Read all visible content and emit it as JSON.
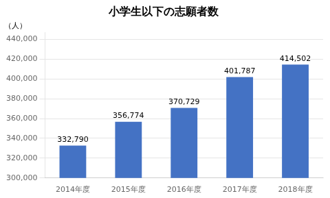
{
  "chart_data": {
    "type": "bar",
    "title": "小学生以下の志願者数",
    "annotations": [
      "（人）"
    ],
    "categories": [
      "2014年度",
      "2015年度",
      "2016年度",
      "2017年度",
      "2018年度"
    ],
    "values": [
      332790,
      356774,
      370729,
      401787,
      414502
    ],
    "value_labels": [
      "332,790",
      "356,774",
      "370,729",
      "401,787",
      "414,502"
    ],
    "data_labels": true,
    "color": "#4472C4",
    "ylim": [
      300000,
      447000
    ],
    "yticks": [
      {
        "value": 300000,
        "label": "300,000"
      },
      {
        "value": 320000,
        "label": "320,000"
      },
      {
        "value": 340000,
        "label": "340,000"
      },
      {
        "value": 360000,
        "label": "360,000"
      },
      {
        "value": 380000,
        "label": "380,000"
      },
      {
        "value": 400000,
        "label": "400,000"
      },
      {
        "value": 420000,
        "label": "420,000"
      },
      {
        "value": 440000,
        "label": "440,000"
      }
    ],
    "grid": true
  }
}
